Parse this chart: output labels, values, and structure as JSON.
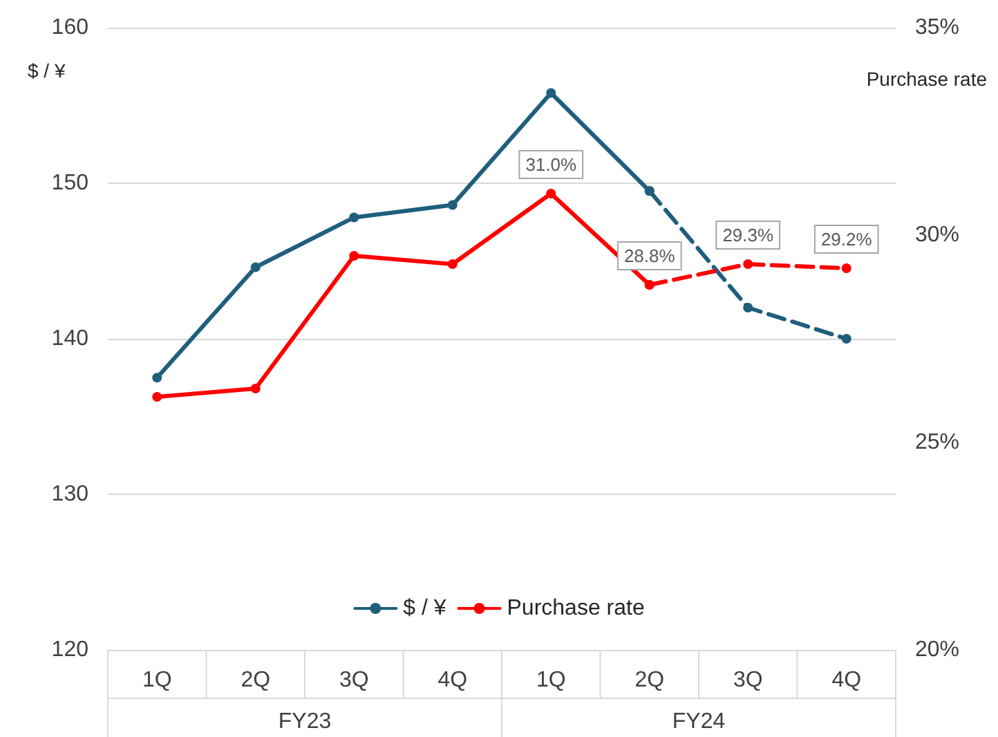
{
  "chart_data": {
    "type": "line",
    "categories": [
      "1Q",
      "2Q",
      "3Q",
      "4Q",
      "1Q",
      "2Q",
      "3Q",
      "4Q"
    ],
    "series": [
      {
        "name": "$ / ¥",
        "color": "#1f5f7d",
        "values": [
          137.5,
          144.6,
          147.8,
          148.6,
          155.8,
          149.5,
          null,
          null
        ]
      },
      {
        "color": "#1f5f7d",
        "line_style": "dashed",
        "values": [
          null,
          null,
          null,
          null,
          null,
          149.5,
          142,
          140
        ]
      },
      {
        "name": "Purchase rate",
        "color": "#ff0000",
        "axis": "y2",
        "values": [
          26.1,
          26.3,
          29.5,
          29.3,
          31.0,
          28.8,
          null,
          null
        ],
        "value_labels": [
          null,
          null,
          null,
          null,
          "31.0%",
          null,
          null,
          null
        ]
      },
      {
        "color": "#ff0000",
        "axis": "y2",
        "line_style": "dashed",
        "values": [
          null,
          null,
          null,
          null,
          null,
          28.8,
          29.3,
          29.2
        ],
        "value_labels": [
          null,
          null,
          null,
          null,
          null,
          "28.8%",
          "29.3%",
          "29.2%"
        ]
      }
    ],
    "ylabel": "$ / ¥",
    "y2label": "Purchase rate",
    "ylim": [
      120,
      160
    ],
    "yticks": [
      120,
      130,
      140,
      150,
      160
    ],
    "y2lim": [
      20,
      35
    ],
    "y2ticks": [
      {
        "value": 20,
        "label": "20%"
      },
      {
        "value": 25,
        "label": "25%"
      },
      {
        "value": 30,
        "label": "30%"
      },
      {
        "value": 35,
        "label": "35%"
      }
    ],
    "annotations": [
      "FY23",
      "FY24"
    ],
    "grid": "y",
    "legend": "bottom",
    "marker": "circle",
    "line_style": "solid"
  }
}
